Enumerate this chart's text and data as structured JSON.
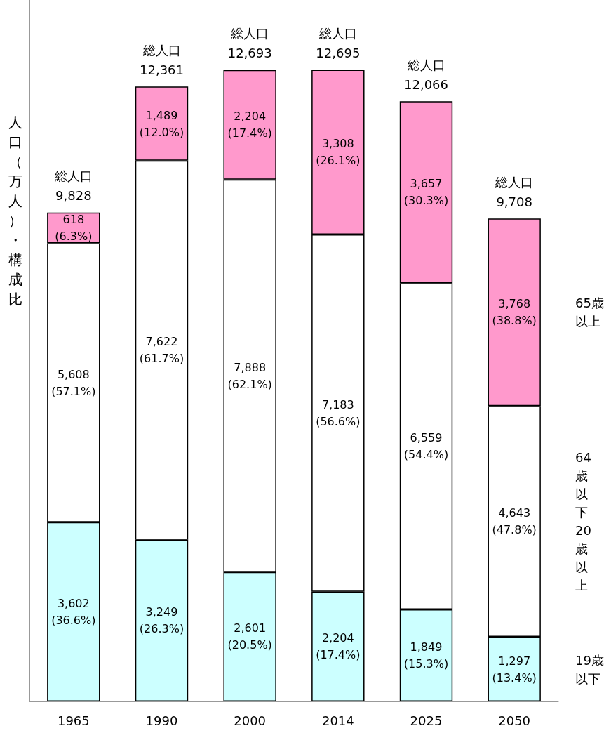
{
  "chart_data": {
    "type": "bar",
    "stacked": true,
    "ylabel": "人口（万人）・構成比",
    "categories": [
      "1965",
      "1990",
      "2000",
      "2014",
      "2025",
      "2050"
    ],
    "ylim": [
      0,
      14100
    ],
    "tick_labels": "x",
    "grid": false,
    "legend": false,
    "series": [
      {
        "name": "19歳以下",
        "color": "#ccffff",
        "values": [
          3602,
          3249,
          2601,
          2204,
          1849,
          1297
        ],
        "value_labels": [
          "3,602\n(36.6%)",
          "3,249\n(26.3%)",
          "2,601\n(20.5%)",
          "2,204\n(17.4%)",
          "1,849\n(15.3%)",
          "1,297\n(13.4%)"
        ]
      },
      {
        "name": "64歳以下20歳以上",
        "color": "#ffffff",
        "values": [
          5608,
          7622,
          7888,
          7183,
          6559,
          4643
        ],
        "value_labels": [
          "5,608\n(57.1%)",
          "7,622\n(61.7%)",
          "7,888\n(62.1%)",
          "7,183\n(56.6%)",
          "6,559\n(54.4%)",
          "4,643\n(47.8%)"
        ]
      },
      {
        "name": "65歳以上",
        "color": "#ff99cc",
        "values": [
          618,
          1489,
          2204,
          3308,
          3657,
          3768
        ],
        "value_labels": [
          "618\n(6.3%)",
          "1,489\n(12.0%)",
          "2,204\n(17.4%)",
          "3,308\n(26.1%)",
          "3,657\n(30.3%)",
          "3,768\n(38.8%)"
        ]
      }
    ],
    "totals": [
      "総人口\n9,828",
      "総人口\n12,361",
      "総人口\n12,693",
      "総人口\n12,695",
      "総人口\n12,066",
      "総人口\n9,708"
    ]
  }
}
